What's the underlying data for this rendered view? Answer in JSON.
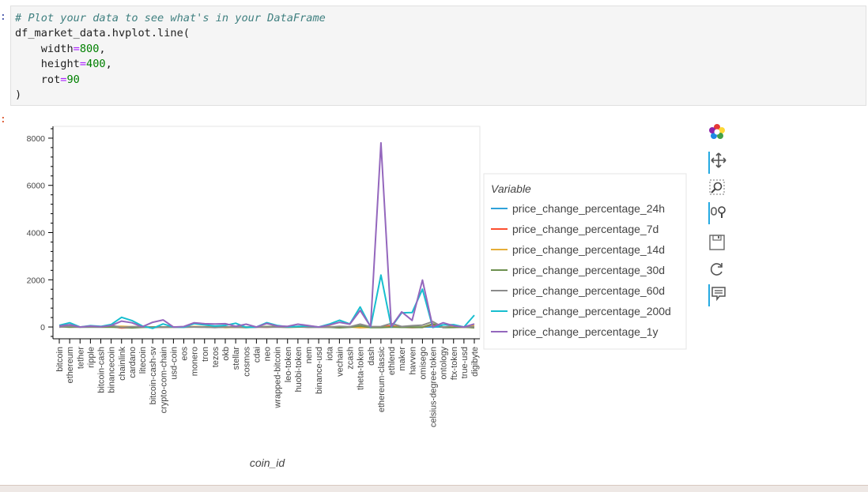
{
  "prompts": {
    "input": ":",
    "output": ":"
  },
  "code_lines": [
    {
      "parts": [
        {
          "t": "# Plot your data to see what's in your DataFrame",
          "c": "cm"
        }
      ]
    },
    {
      "parts": [
        {
          "t": "df_market_data.hvplot.line(",
          "c": ""
        }
      ]
    },
    {
      "parts": [
        {
          "t": "    width",
          "c": ""
        },
        {
          "t": "=",
          "c": "kw"
        },
        {
          "t": "800",
          "c": "num"
        },
        {
          "t": ",",
          "c": ""
        }
      ]
    },
    {
      "parts": [
        {
          "t": "    height",
          "c": ""
        },
        {
          "t": "=",
          "c": "kw"
        },
        {
          "t": "400",
          "c": "num"
        },
        {
          "t": ",",
          "c": ""
        }
      ]
    },
    {
      "parts": [
        {
          "t": "    rot",
          "c": ""
        },
        {
          "t": "=",
          "c": "kw"
        },
        {
          "t": "90",
          "c": "num"
        }
      ]
    },
    {
      "parts": [
        {
          "t": ")",
          "c": ""
        }
      ]
    }
  ],
  "chart_data": {
    "type": "line",
    "xlabel": "coin_id",
    "ylabel": "",
    "ylim": [
      -500,
      8500
    ],
    "yticks": [
      0,
      2000,
      4000,
      6000,
      8000
    ],
    "grid": false,
    "legend_title": "Variable",
    "legend_position": "right",
    "categories": [
      "bitcoin",
      "ethereum",
      "tether",
      "ripple",
      "bitcoin-cash",
      "binancecoin",
      "chainlink",
      "cardano",
      "litecoin",
      "bitcoin-cash-sv",
      "crypto-com-chain",
      "usd-coin",
      "eos",
      "monero",
      "tron",
      "tezos",
      "okb",
      "stellar",
      "cosmos",
      "cdai",
      "neo",
      "wrapped-bitcoin",
      "leo-token",
      "huobi-token",
      "nem",
      "binance-usd",
      "iota",
      "vechain",
      "zcash",
      "theta-token",
      "dash",
      "ethereum-classic",
      "ethlend",
      "maker",
      "havven",
      "omisego",
      "celsius-degree-token",
      "ontology",
      "ftx-token",
      "true-usd",
      "digibyte"
    ],
    "series": [
      {
        "name": "price_change_percentage_24h",
        "color": "#30a2da",
        "values": [
          1,
          8,
          0,
          -1,
          3,
          2,
          -1,
          0,
          0,
          1,
          -2,
          0,
          0,
          1,
          0,
          0,
          -1,
          0,
          1,
          0,
          0,
          1,
          1,
          1,
          0,
          0,
          0,
          0,
          -1,
          1,
          0,
          1,
          0,
          1,
          0,
          2,
          3,
          0,
          1,
          0,
          0
        ]
      },
      {
        "name": "price_change_percentage_7d",
        "color": "#fc4f30",
        "values": [
          8,
          13,
          1,
          12,
          12,
          20,
          -40,
          -18,
          13,
          -20,
          -5,
          0,
          -3,
          3,
          -2,
          -12,
          -2,
          -6,
          -6,
          1,
          -10,
          8,
          -2,
          3,
          -3,
          0,
          -6,
          -20,
          7,
          -12,
          9,
          0,
          50,
          -10,
          -20,
          -10,
          100,
          -10,
          -12,
          0,
          -20
        ]
      },
      {
        "name": "price_change_percentage_14d",
        "color": "#e5ae38",
        "values": [
          7,
          6,
          0,
          2,
          13,
          19,
          25,
          10,
          14,
          -1,
          -7,
          0,
          -1,
          20,
          4,
          16,
          -22,
          -6,
          -2,
          1,
          12,
          8,
          -10,
          12,
          1,
          0,
          20,
          -6,
          1,
          -30,
          -15,
          0,
          -2,
          14,
          -6,
          -2,
          130,
          -7,
          -1,
          0,
          60
        ]
      },
      {
        "name": "price_change_percentage_30d",
        "color": "#6d904f",
        "values": [
          7,
          -6,
          0,
          -2,
          -5,
          -5,
          -14,
          -35,
          -14,
          -1,
          -1,
          0,
          -3,
          -3,
          -1,
          -16,
          3,
          -5,
          -20,
          -1,
          18,
          7,
          -10,
          -1,
          -2,
          0,
          -10,
          -32,
          -12,
          50,
          -20,
          -20,
          -2,
          -15,
          -16,
          -17,
          130,
          -20,
          -17,
          0,
          -30
        ]
      },
      {
        "name": "price_change_percentage_60d",
        "color": "#8b8b8b",
        "values": [
          -4,
          35,
          0,
          16,
          10,
          70,
          -19,
          13,
          12,
          -19,
          -12,
          0,
          -1,
          1,
          0,
          -22,
          3,
          -8,
          -4,
          -2,
          -2,
          -4,
          -13,
          24,
          -15,
          0,
          -4,
          24,
          10,
          120,
          12,
          19,
          150,
          19,
          54,
          80,
          230,
          -22,
          80,
          0,
          10
        ]
      },
      {
        "name": "price_change_percentage_200d",
        "color": "#17becf",
        "values": [
          70,
          180,
          0,
          55,
          25,
          106,
          410,
          272,
          42,
          -60,
          130,
          0,
          -12,
          143,
          89,
          40,
          68,
          160,
          -13,
          -1,
          183,
          67,
          12,
          23,
          50,
          0,
          120,
          286,
          128,
          850,
          -2,
          2200,
          -3,
          600,
          610,
          1600,
          -20,
          90,
          100,
          0,
          500
        ]
      },
      {
        "name": "price_change_percentage_1y",
        "color": "#9467bd",
        "values": [
          40,
          100,
          -1,
          37,
          10,
          60,
          250,
          180,
          10,
          200,
          300,
          0,
          20,
          180,
          140,
          130,
          140,
          30,
          120,
          -1,
          150,
          40,
          30,
          120,
          60,
          0,
          80,
          200,
          120,
          700,
          20,
          7800,
          20,
          640,
          280,
          1990,
          0,
          180,
          50,
          0,
          130
        ]
      }
    ]
  },
  "toolbar": {
    "tools": [
      "bokeh-logo-icon",
      "pan-icon",
      "box-zoom-icon",
      "wheel-zoom-icon",
      "save-icon",
      "reset-icon",
      "hover-icon"
    ]
  }
}
